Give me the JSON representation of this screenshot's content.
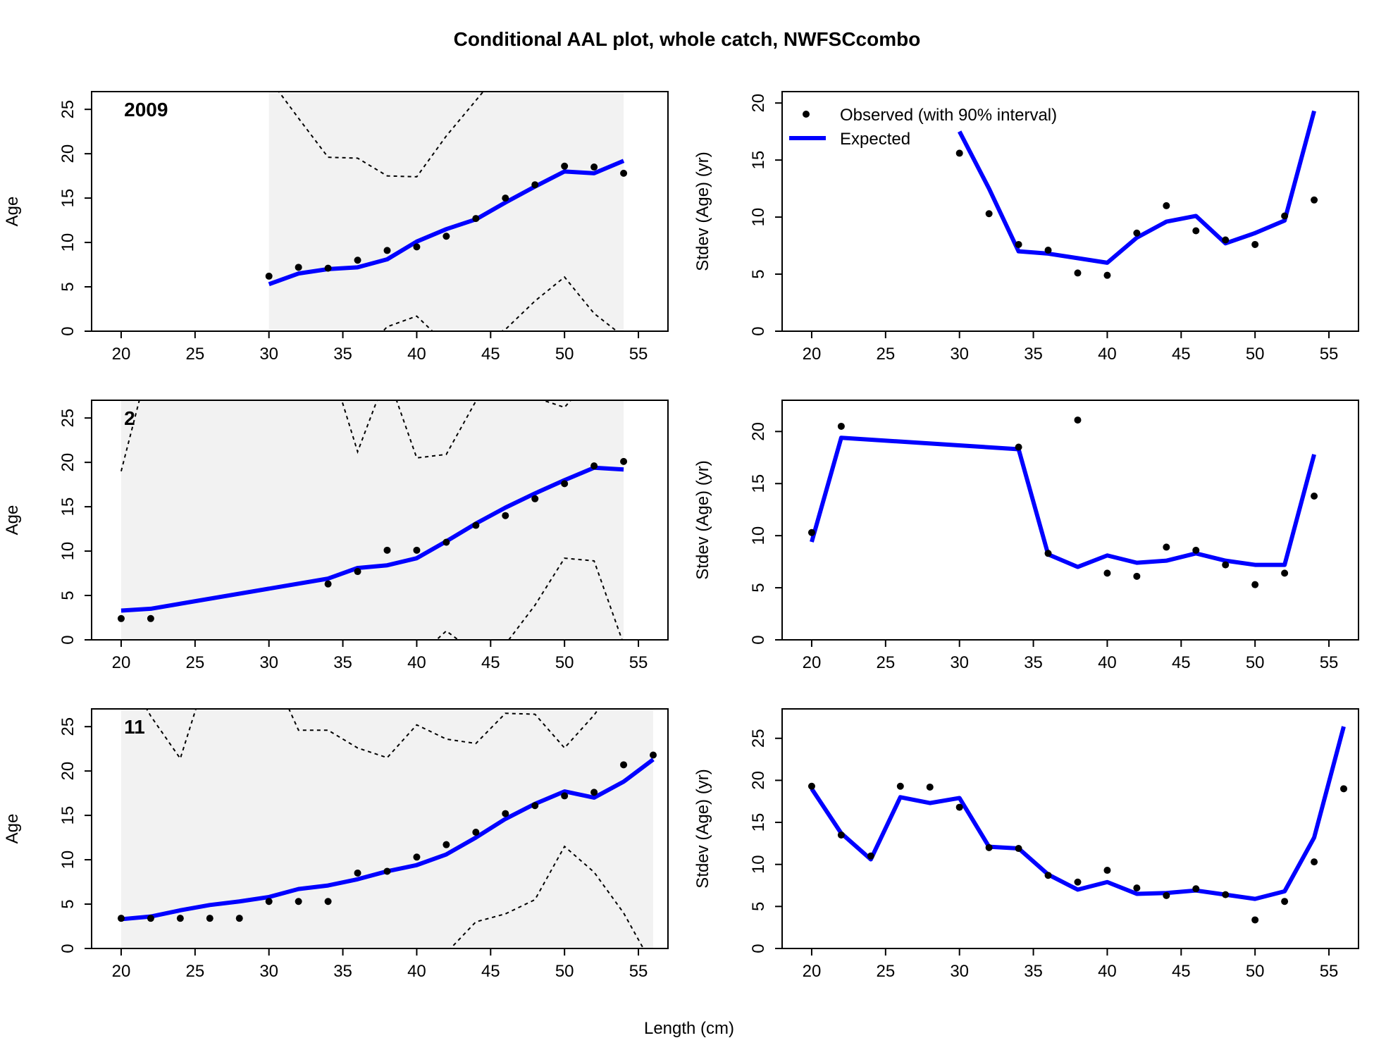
{
  "figure": {
    "title": "Conditional AAL plot, whole catch, NWFSCcombo",
    "xlabel": "Length (cm)",
    "legend": {
      "observed": "Observed (with 90% interval)",
      "expected": "Expected"
    },
    "colors": {
      "expected": "#0000FF",
      "observed": "#000000",
      "interval_band": "#F2F2F2",
      "interval_line": "#000000"
    }
  },
  "chart_data": [
    {
      "type": "line",
      "panel": "age",
      "year_label": "2009",
      "ylabel": "Age",
      "xlim": [
        18,
        57
      ],
      "ylim": [
        0,
        27
      ],
      "xticks": [
        20,
        25,
        30,
        35,
        40,
        45,
        50,
        55
      ],
      "yticks": [
        0,
        5,
        10,
        15,
        20,
        25
      ],
      "band_x": [
        30,
        54
      ],
      "x": [
        30,
        32,
        34,
        36,
        38,
        40,
        42,
        44,
        46,
        48,
        50,
        52,
        54
      ],
      "expected": [
        5.3,
        6.5,
        7.0,
        7.2,
        8.1,
        10.1,
        11.5,
        12.6,
        14.5,
        16.3,
        18.0,
        17.8,
        19.2
      ],
      "observed": [
        6.2,
        7.2,
        7.1,
        8.0,
        9.1,
        9.5,
        10.7,
        12.7,
        15.0,
        16.5,
        18.6,
        18.5,
        17.8
      ],
      "upper": [
        28.5,
        24.0,
        19.6,
        19.5,
        17.5,
        17.4,
        22.0,
        26.0,
        30,
        30,
        30,
        30,
        30
      ],
      "lower": [
        -3,
        -3,
        -3,
        -3,
        0.5,
        1.7,
        -1.5,
        -1.5,
        0.2,
        3.4,
        6.1,
        2.0,
        -0.6
      ]
    },
    {
      "type": "line",
      "panel": "sd",
      "ylabel": "Stdev (Age) (yr)",
      "xlim": [
        18,
        57
      ],
      "ylim": [
        0,
        21
      ],
      "xticks": [
        20,
        25,
        30,
        35,
        40,
        45,
        50,
        55
      ],
      "yticks": [
        0,
        5,
        10,
        15,
        20
      ],
      "x": [
        30,
        32,
        34,
        36,
        38,
        40,
        42,
        44,
        46,
        48,
        50,
        52,
        54
      ],
      "expected": [
        17.5,
        12.5,
        7.0,
        6.8,
        6.4,
        6.0,
        8.2,
        9.6,
        10.1,
        7.7,
        8.6,
        9.7,
        19.3
      ],
      "observed": [
        15.6,
        10.3,
        7.6,
        7.1,
        5.1,
        4.9,
        8.6,
        11.0,
        8.8,
        8.0,
        7.6,
        10.1,
        11.5
      ]
    },
    {
      "type": "line",
      "panel": "age",
      "year_label": "2",
      "ylabel": "Age",
      "xlim": [
        18,
        57
      ],
      "ylim": [
        0,
        27
      ],
      "xticks": [
        20,
        25,
        30,
        35,
        40,
        45,
        50,
        55
      ],
      "yticks": [
        0,
        5,
        10,
        15,
        20,
        25
      ],
      "band_x": [
        20,
        54
      ],
      "x": [
        20,
        22,
        34,
        36,
        38,
        40,
        42,
        44,
        46,
        48,
        50,
        52,
        54
      ],
      "expected": [
        3.3,
        3.5,
        6.9,
        8.1,
        8.4,
        9.2,
        11.1,
        13.1,
        14.9,
        16.5,
        18.0,
        19.4,
        19.2
      ],
      "observed": [
        2.4,
        2.4,
        6.3,
        7.7,
        10.1,
        10.1,
        11.0,
        12.9,
        14.0,
        15.9,
        17.6,
        19.6,
        20.1
      ],
      "upper": [
        19.0,
        32,
        32,
        21.2,
        30,
        20.5,
        20.9,
        26.9,
        28.0,
        27.3,
        26.2,
        30,
        32
      ],
      "lower": [
        -2,
        -2,
        -2,
        -2,
        -2,
        -2,
        1.0,
        -1.5,
        -0.5,
        3.9,
        9.2,
        8.9,
        -0.5
      ]
    },
    {
      "type": "line",
      "panel": "sd",
      "ylabel": "Stdev (Age) (yr)",
      "xlim": [
        18,
        57
      ],
      "ylim": [
        0,
        23
      ],
      "xticks": [
        20,
        25,
        30,
        35,
        40,
        45,
        50,
        55
      ],
      "yticks": [
        0,
        5,
        10,
        15,
        20
      ],
      "x": [
        20,
        22,
        34,
        36,
        38,
        40,
        42,
        44,
        46,
        48,
        50,
        52,
        54
      ],
      "expected": [
        9.4,
        19.4,
        18.3,
        8.2,
        7.0,
        8.1,
        7.4,
        7.6,
        8.3,
        7.6,
        7.2,
        7.2,
        17.8
      ],
      "observed": [
        10.3,
        20.5,
        18.5,
        8.3,
        21.1,
        6.4,
        6.1,
        8.9,
        8.6,
        7.2,
        5.3,
        6.4,
        13.8
      ]
    },
    {
      "type": "line",
      "panel": "age",
      "year_label": "11",
      "ylabel": "Age",
      "xlim": [
        18,
        57
      ],
      "ylim": [
        0,
        27
      ],
      "xticks": [
        20,
        25,
        30,
        35,
        40,
        45,
        50,
        55
      ],
      "yticks": [
        0,
        5,
        10,
        15,
        20,
        25
      ],
      "band_x": [
        20,
        56
      ],
      "x": [
        20,
        22,
        24,
        26,
        28,
        30,
        32,
        34,
        36,
        38,
        40,
        42,
        44,
        46,
        48,
        50,
        52,
        54,
        56
      ],
      "expected": [
        3.3,
        3.6,
        4.3,
        4.9,
        5.3,
        5.8,
        6.7,
        7.1,
        7.8,
        8.7,
        9.4,
        10.6,
        12.5,
        14.6,
        16.3,
        17.7,
        17.0,
        18.8,
        21.3
      ],
      "observed": [
        3.4,
        3.4,
        3.4,
        3.4,
        3.4,
        5.3,
        5.3,
        5.3,
        8.5,
        8.7,
        10.3,
        11.7,
        13.1,
        15.2,
        16.1,
        17.2,
        17.6,
        20.7,
        21.8
      ],
      "upper": [
        32,
        26.2,
        21.4,
        32,
        32,
        32,
        24.6,
        24.6,
        22.6,
        21.5,
        25.2,
        23.6,
        23.1,
        26.5,
        26.4,
        22.6,
        26.3,
        31,
        32
      ],
      "lower": [
        -2,
        -2,
        -2,
        -2,
        -2,
        -2,
        -2,
        -2,
        -2,
        -2,
        -2,
        -0.5,
        3.0,
        3.9,
        5.5,
        11.5,
        8.6,
        4.0,
        -2
      ]
    },
    {
      "type": "line",
      "panel": "sd",
      "ylabel": "Stdev (Age) (yr)",
      "xlim": [
        18,
        57
      ],
      "ylim": [
        0,
        28.5
      ],
      "xticks": [
        20,
        25,
        30,
        35,
        40,
        45,
        50,
        55
      ],
      "yticks": [
        0,
        5,
        10,
        15,
        20,
        25
      ],
      "x": [
        20,
        22,
        24,
        26,
        28,
        30,
        32,
        34,
        36,
        38,
        40,
        42,
        44,
        46,
        48,
        50,
        52,
        54,
        56
      ],
      "expected": [
        19.0,
        13.7,
        10.6,
        18.0,
        17.3,
        17.9,
        12.1,
        11.9,
        8.8,
        7.0,
        7.9,
        6.5,
        6.6,
        6.9,
        6.4,
        5.9,
        6.8,
        13.2,
        26.4
      ],
      "observed": [
        19.3,
        13.5,
        11.0,
        19.3,
        19.2,
        16.8,
        12.0,
        11.9,
        8.7,
        7.9,
        9.3,
        7.2,
        6.3,
        7.1,
        6.4,
        3.4,
        5.6,
        10.3,
        19.0
      ]
    }
  ]
}
